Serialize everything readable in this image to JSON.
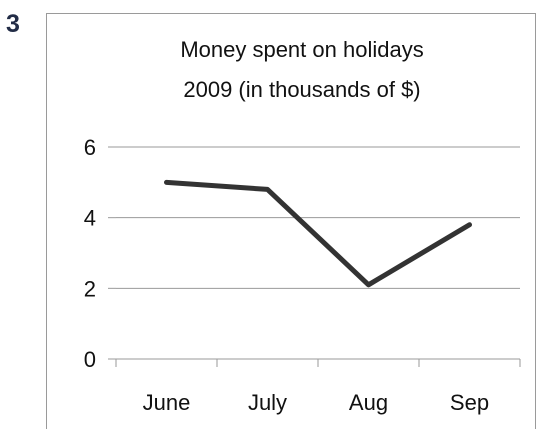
{
  "question_number": "3",
  "chart_data": {
    "type": "line",
    "title": "Money spent on holidays",
    "subtitle": "2009 (in thousands of $)",
    "categories": [
      "June",
      "July",
      "Aug",
      "Sep"
    ],
    "series": [
      {
        "values": [
          5.0,
          4.8,
          2.1,
          3.8
        ]
      }
    ],
    "yticks": [
      0,
      2,
      4,
      6
    ],
    "ylim": [
      0,
      6
    ],
    "xlabel": "",
    "ylabel": "",
    "grid": true,
    "legend": "none",
    "colors": {
      "line": "#333333",
      "grid": "#9a9a9a",
      "axis": "#9a9a9a"
    }
  }
}
